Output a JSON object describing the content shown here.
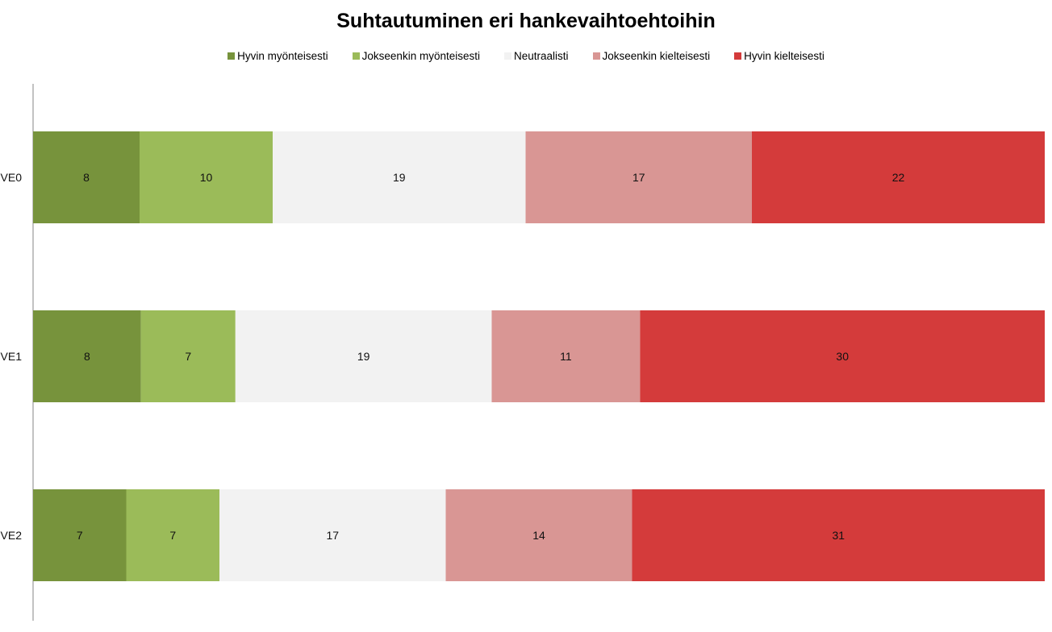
{
  "chart_data": {
    "type": "bar",
    "orientation": "horizontal",
    "stacked": true,
    "title": "Suhtautuminen eri hankevaihtoehtoihin",
    "categories": [
      "VE0",
      "VE1",
      "VE2"
    ],
    "series": [
      {
        "name": "Hyvin myönteisesti",
        "color": "#77933c",
        "values": [
          8,
          8,
          7
        ]
      },
      {
        "name": "Jokseenkin myönteisesti",
        "color": "#9bbb59",
        "values": [
          10,
          7,
          7
        ]
      },
      {
        "name": "Neutraalisti",
        "color": "#f2f2f2",
        "values": [
          19,
          19,
          17
        ]
      },
      {
        "name": "Jokseenkin kielteisesti",
        "color": "#d99694",
        "values": [
          17,
          11,
          14
        ]
      },
      {
        "name": "Hyvin kielteisesti",
        "color": "#d43b3b",
        "values": [
          22,
          30,
          31
        ]
      }
    ],
    "legend_position": "top",
    "grid": false,
    "data_labels": true
  }
}
